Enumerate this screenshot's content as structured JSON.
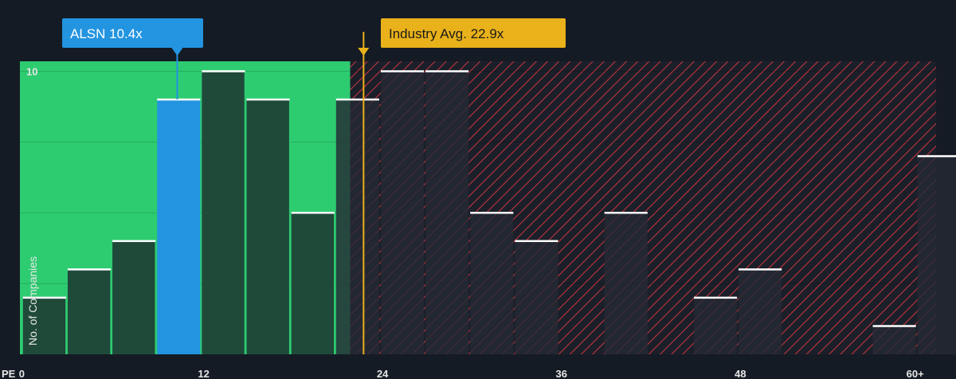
{
  "chart_data": {
    "type": "bar",
    "x_axis_label": "PE",
    "y_axis_label": "No. of Companies",
    "x_ticks": [
      {
        "value": 0,
        "label": "0"
      },
      {
        "value": 12,
        "label": "12"
      },
      {
        "value": 24,
        "label": "24"
      },
      {
        "value": 36,
        "label": "36"
      },
      {
        "value": 48,
        "label": "48"
      },
      {
        "value": 60,
        "label": "60+"
      }
    ],
    "y_ticks": [
      {
        "value": 10,
        "label": "10"
      }
    ],
    "xlim": [
      -0.15,
      61.3
    ],
    "ylim": [
      0,
      10.35
    ],
    "grid": true,
    "bin_width": 3,
    "bins": [
      {
        "start": 0,
        "count": 2
      },
      {
        "start": 3,
        "count": 3
      },
      {
        "start": 6,
        "count": 4
      },
      {
        "start": 9,
        "count": 9
      },
      {
        "start": 12,
        "count": 10
      },
      {
        "start": 15,
        "count": 9
      },
      {
        "start": 18,
        "count": 5
      },
      {
        "start": 21,
        "count": 9
      },
      {
        "start": 24,
        "count": 10
      },
      {
        "start": 27,
        "count": 10
      },
      {
        "start": 30,
        "count": 5
      },
      {
        "start": 33,
        "count": 4
      },
      {
        "start": 36,
        "count": 0
      },
      {
        "start": 39,
        "count": 5
      },
      {
        "start": 42,
        "count": 0
      },
      {
        "start": 45,
        "count": 2
      },
      {
        "start": 48,
        "count": 3
      },
      {
        "start": 51,
        "count": 0
      },
      {
        "start": 54,
        "count": 0
      },
      {
        "start": 57,
        "count": 1
      },
      {
        "start": 60,
        "count": 7
      }
    ],
    "highlight_bin_start": 9,
    "fair_region_end": 22,
    "subject": {
      "label": "ALSN 10.4x",
      "value": 10.4
    },
    "industry_avg": {
      "label": "Industry Avg. 22.9x",
      "value": 22.9
    },
    "colors": {
      "background": "#151b24",
      "fair_zone": "#2ecc71",
      "bar": "#1f4a3a",
      "bar_edge": "#2ecc71",
      "highlight": "#2394e0",
      "overvalued_stripe": "#c0343f",
      "overvalued_bar": "#252a35",
      "bar_top": "#ffffff",
      "callout_subject": "#2394e0",
      "callout_industry": "#e9b11a"
    }
  }
}
